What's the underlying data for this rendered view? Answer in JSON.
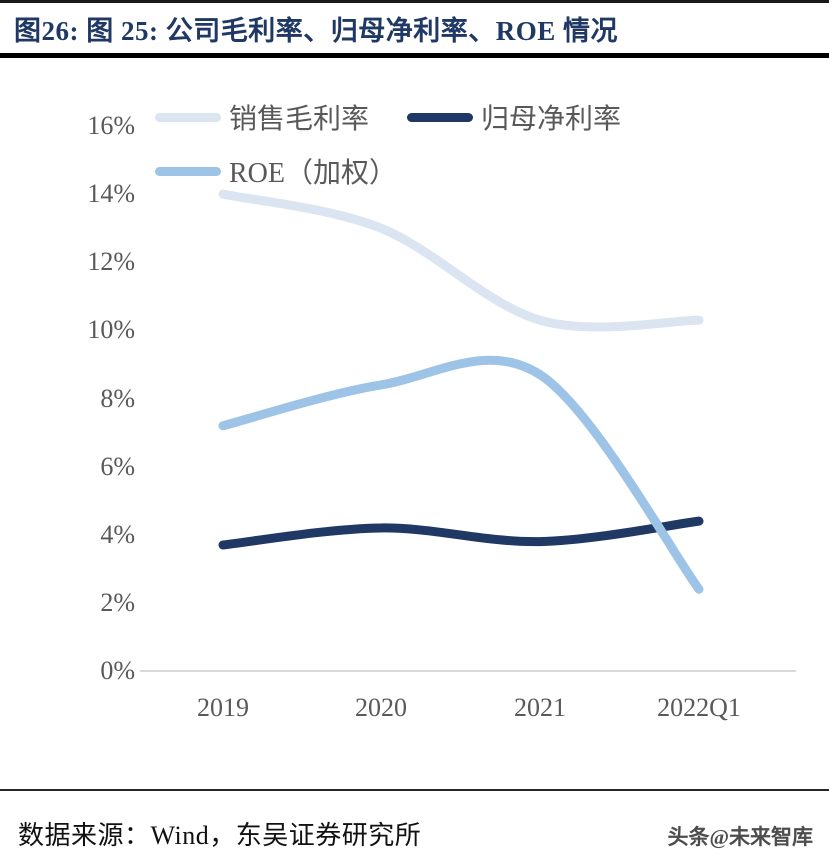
{
  "page": {
    "title": "图26:  图 25:  公司毛利率、归母净利率、ROE 情况",
    "source_note": "数据来源：Wind，东吴证券研究所",
    "watermark": "头条@未来智库"
  },
  "colors": {
    "title_text": "#1f3864",
    "axis_line": "#d9d9d9",
    "tick_text": "#595959"
  },
  "chart_data": {
    "type": "line",
    "smooth": true,
    "title": "公司毛利率、归母净利率、ROE 情况",
    "categories": [
      "2019",
      "2020",
      "2021",
      "2022Q1"
    ],
    "series": [
      {
        "name": "销售毛利率",
        "color": "#dbe4f1",
        "values": [
          14.0,
          13.0,
          10.3,
          10.3
        ]
      },
      {
        "name": "归母净利率",
        "color": "#1f3864",
        "values": [
          3.7,
          4.2,
          3.8,
          4.4
        ]
      },
      {
        "name": "ROE（加权）",
        "color": "#9dc3e6",
        "values": [
          7.2,
          8.4,
          8.7,
          2.4
        ]
      }
    ],
    "ylim": [
      0,
      16
    ],
    "ytick_step": 2,
    "ytick_suffix": "%",
    "legend_position": "top-left",
    "grid": false
  }
}
